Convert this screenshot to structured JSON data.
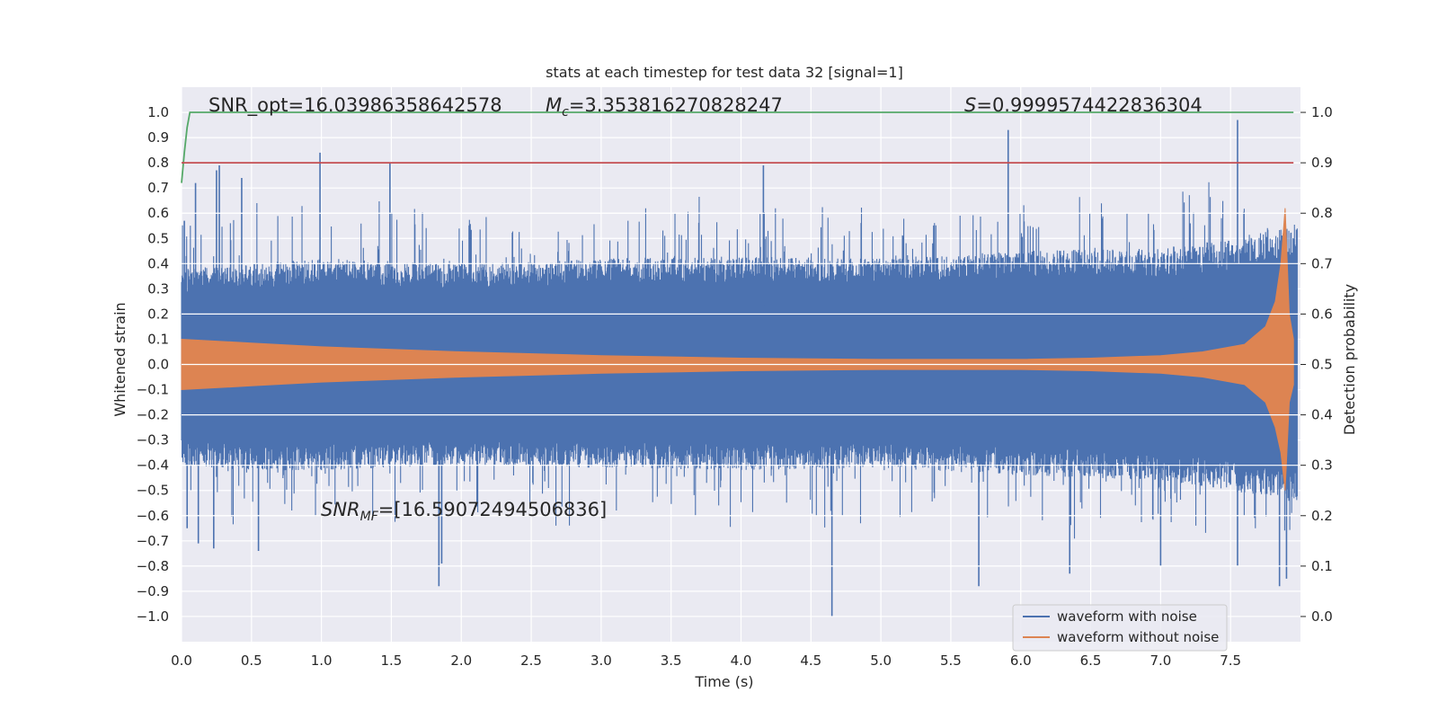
{
  "chart_data": {
    "type": "line",
    "title": "stats at each timestep for test data 32 [signal=1]",
    "xlabel": "Time (s)",
    "ylabel": "Whitened strain",
    "ylabel_right": "Detection probability",
    "xlim": [
      0.0,
      8.0
    ],
    "ylim": [
      -1.1,
      1.1
    ],
    "ylim_right": [
      -0.05,
      1.05
    ],
    "xticks": [
      "0.0",
      "0.5",
      "1.0",
      "1.5",
      "2.0",
      "2.5",
      "3.0",
      "3.5",
      "4.0",
      "4.5",
      "5.0",
      "5.5",
      "6.0",
      "6.5",
      "7.0",
      "7.5"
    ],
    "yticks": [
      "1.0",
      "0.9",
      "0.8",
      "0.7",
      "0.6",
      "0.5",
      "0.4",
      "0.3",
      "0.2",
      "0.1",
      "0.0",
      "−0.1",
      "−0.2",
      "−0.3",
      "−0.4",
      "−0.5",
      "−0.6",
      "−0.7",
      "−0.8",
      "−0.9",
      "−1.0"
    ],
    "yticks_right": [
      "1.0",
      "0.9",
      "0.8",
      "0.7",
      "0.6",
      "0.5",
      "0.4",
      "0.3",
      "0.2",
      "0.1",
      "0.0"
    ],
    "grid": true,
    "legend_position": "lower-right",
    "annotations": {
      "snr_opt": "SNR_opt=16.03986358642578",
      "mc_label": "M",
      "mc_sub": "c",
      "mc_value": "=3.353816270828247",
      "s_label": "S",
      "s_value": "=0.9999574422836304",
      "snrmf_label": "SNR",
      "snrmf_sub": "MF",
      "snrmf_value": "=[16.59072494506836]"
    },
    "series": [
      {
        "name": "waveform with noise",
        "color": "#4c72b0",
        "axis": "left",
        "envelope_upper": [
          [
            0.0,
            0.38
          ],
          [
            0.5,
            0.4
          ],
          [
            1.0,
            0.42
          ],
          [
            2.0,
            0.4
          ],
          [
            3.0,
            0.42
          ],
          [
            4.0,
            0.43
          ],
          [
            5.0,
            0.42
          ],
          [
            6.0,
            0.45
          ],
          [
            7.0,
            0.46
          ],
          [
            7.5,
            0.5
          ],
          [
            7.95,
            0.55
          ]
        ],
        "envelope_lower": [
          [
            0.0,
            -0.4
          ],
          [
            0.5,
            -0.42
          ],
          [
            1.0,
            -0.42
          ],
          [
            2.0,
            -0.4
          ],
          [
            3.0,
            -0.41
          ],
          [
            4.0,
            -0.42
          ],
          [
            5.0,
            -0.41
          ],
          [
            6.0,
            -0.44
          ],
          [
            7.0,
            -0.46
          ],
          [
            7.5,
            -0.5
          ],
          [
            7.95,
            -0.55
          ]
        ],
        "peaks": [
          [
            0.02,
            0.57
          ],
          [
            0.1,
            0.72
          ],
          [
            0.25,
            0.77
          ],
          [
            0.27,
            0.79
          ],
          [
            0.43,
            0.74
          ],
          [
            0.99,
            0.84
          ],
          [
            1.49,
            0.8
          ],
          [
            4.16,
            0.79
          ],
          [
            5.91,
            0.93
          ],
          [
            7.55,
            0.97
          ],
          [
            0.04,
            -0.65
          ],
          [
            0.12,
            -0.71
          ],
          [
            0.23,
            -0.73
          ],
          [
            0.55,
            -0.74
          ],
          [
            1.84,
            -0.88
          ],
          [
            1.86,
            -0.79
          ],
          [
            4.65,
            -1.0
          ],
          [
            5.7,
            -0.88
          ],
          [
            6.35,
            -0.83
          ],
          [
            7.0,
            -0.8
          ],
          [
            7.55,
            -0.8
          ],
          [
            7.85,
            -0.88
          ],
          [
            7.9,
            -0.85
          ]
        ]
      },
      {
        "name": "waveform without noise",
        "color": "#dd8452",
        "axis": "left",
        "envelope": [
          [
            0.0,
            0.1
          ],
          [
            0.5,
            0.085
          ],
          [
            1.0,
            0.07
          ],
          [
            2.0,
            0.05
          ],
          [
            3.0,
            0.035
          ],
          [
            4.0,
            0.025
          ],
          [
            5.0,
            0.02
          ],
          [
            6.0,
            0.02
          ],
          [
            6.5,
            0.025
          ],
          [
            7.0,
            0.035
          ],
          [
            7.3,
            0.05
          ],
          [
            7.6,
            0.08
          ],
          [
            7.75,
            0.15
          ],
          [
            7.82,
            0.25
          ],
          [
            7.86,
            0.4
          ],
          [
            7.89,
            0.62
          ],
          [
            7.92,
            0.2
          ],
          [
            7.95,
            0.1
          ]
        ],
        "envelope_lower": [
          [
            0.0,
            -0.1
          ],
          [
            0.5,
            -0.085
          ],
          [
            1.0,
            -0.07
          ],
          [
            2.0,
            -0.05
          ],
          [
            3.0,
            -0.035
          ],
          [
            4.0,
            -0.025
          ],
          [
            5.0,
            -0.02
          ],
          [
            6.0,
            -0.02
          ],
          [
            6.5,
            -0.025
          ],
          [
            7.0,
            -0.035
          ],
          [
            7.3,
            -0.05
          ],
          [
            7.6,
            -0.08
          ],
          [
            7.75,
            -0.15
          ],
          [
            7.82,
            -0.25
          ],
          [
            7.86,
            -0.35
          ],
          [
            7.89,
            -0.5
          ],
          [
            7.92,
            -0.15
          ],
          [
            7.95,
            -0.08
          ]
        ]
      },
      {
        "color": "#55a868",
        "axis": "right",
        "points": [
          [
            0.0,
            0.86
          ],
          [
            0.02,
            0.92
          ],
          [
            0.04,
            0.97
          ],
          [
            0.06,
            1.0
          ],
          [
            7.95,
            1.0
          ]
        ]
      },
      {
        "color": "#c44e52",
        "axis": "right",
        "points": [
          [
            0.0,
            0.9
          ],
          [
            7.95,
            0.9
          ]
        ]
      }
    ]
  }
}
